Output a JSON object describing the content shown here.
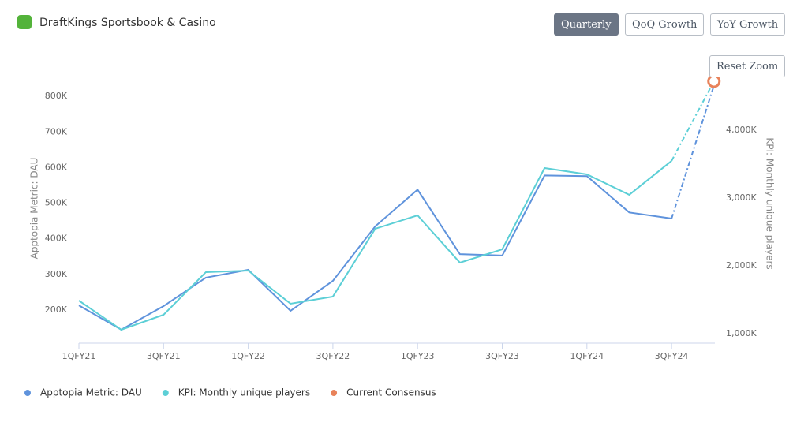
{
  "chart_data": {
    "type": "line",
    "title": "DraftKings Sportsbook & Casino",
    "y_label": "Apptopia Metric: DAU",
    "y2_label": "KPI: Monthly unique players",
    "categories": [
      "1QFY21",
      null,
      "3QFY21",
      null,
      "1QFY22",
      null,
      "3QFY22",
      null,
      "1QFY23",
      null,
      "3QFY23",
      null,
      "1QFY24",
      null,
      "3QFY24",
      null
    ],
    "series": [
      {
        "name": "Apptopia Metric: DAU",
        "color": "#5f93dc",
        "axis": "y",
        "values": [
          213000,
          145000,
          211000,
          291000,
          313000,
          198000,
          282000,
          435000,
          538000,
          357000,
          353000,
          578000,
          576000,
          474000,
          457000,
          830000
        ]
      },
      {
        "name": "KPI: Monthly unique players",
        "color": "#5ccfd6",
        "axis": "y2",
        "values": [
          1488000,
          1058000,
          1279000,
          1907000,
          1930000,
          1442000,
          1547000,
          2547000,
          2744000,
          2047000,
          2244000,
          3442000,
          3349000,
          3047000,
          3547000,
          4721000
        ]
      },
      {
        "name": "Current Consensus",
        "color": "#e8825a",
        "axis": "y2",
        "values": [
          null,
          null,
          null,
          null,
          null,
          null,
          null,
          null,
          null,
          null,
          null,
          null,
          null,
          null,
          null,
          4721000
        ]
      }
    ],
    "ylim": [
      107000,
      849000
    ],
    "yticks": [
      {
        "value": 200000,
        "label": "200K"
      },
      {
        "value": 300000,
        "label": "300K"
      },
      {
        "value": 400000,
        "label": "400K"
      },
      {
        "value": 500000,
        "label": "500K"
      },
      {
        "value": 600000,
        "label": "600K"
      },
      {
        "value": 700000,
        "label": "700K"
      },
      {
        "value": 800000,
        "label": "800K"
      }
    ],
    "y2lim": [
      860000,
      4756000
    ],
    "y2ticks": [
      {
        "value": 1000000,
        "label": "1,000K"
      },
      {
        "value": 2000000,
        "label": "2,000K"
      },
      {
        "value": 3000000,
        "label": "3,000K"
      },
      {
        "value": 4000000,
        "label": "4,000K"
      }
    ],
    "legend_position": "bottom-left"
  },
  "toolbar": {
    "buttons": [
      "Quarterly",
      "QoQ Growth",
      "YoY Growth"
    ],
    "active": 0,
    "reset_zoom": "Reset Zoom"
  }
}
